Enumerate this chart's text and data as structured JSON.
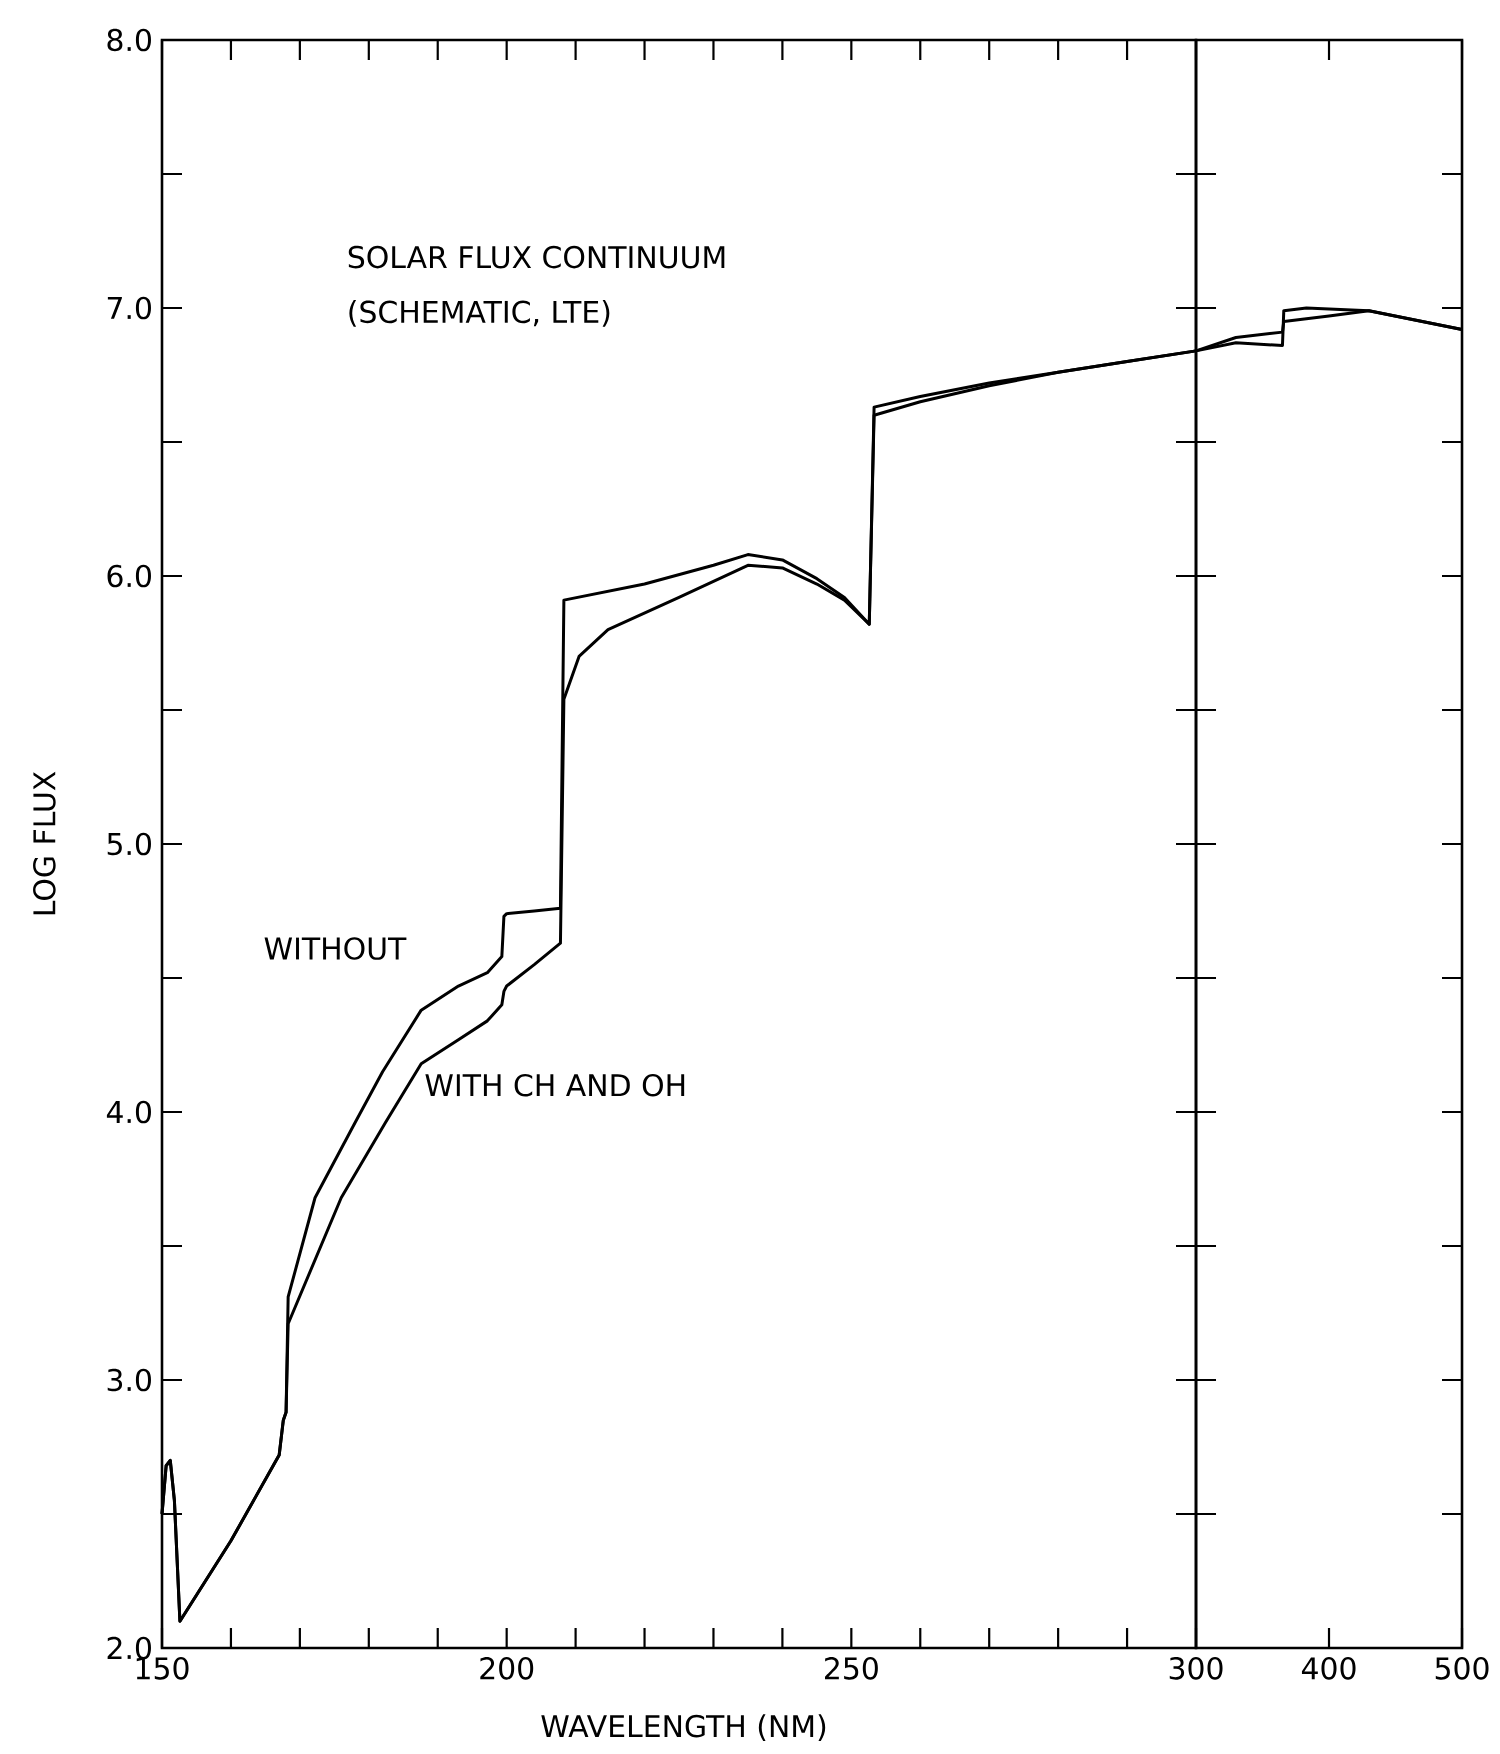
{
  "chart_data": [
    {
      "type": "line",
      "title": "SOLAR FLUX CONTINUUM",
      "subtitle": "(SCHEMATIC, LTE)",
      "xlabel": "WAVELENGTH (NM)",
      "ylabel": "LOG FLUX",
      "xlim": [
        150,
        300
      ],
      "ylim": [
        2,
        8
      ],
      "xticks": [
        150,
        {
          "value": 160,
          "label": null
        },
        {
          "value": 170,
          "label": null
        },
        {
          "value": 180,
          "label": null
        },
        {
          "value": 190,
          "label": null
        },
        200,
        {
          "value": 210,
          "label": null
        },
        {
          "value": 220,
          "label": null
        },
        {
          "value": 230,
          "label": null
        },
        {
          "value": 240,
          "label": null
        },
        250,
        {
          "value": 260,
          "label": null
        },
        {
          "value": 270,
          "label": null
        },
        {
          "value": 280,
          "label": null
        },
        {
          "value": 290,
          "label": null
        }
      ],
      "yticks": [
        {
          "value": 2,
          "label": "2.0"
        },
        {
          "value": 2.5,
          "label": null
        },
        {
          "value": 3,
          "label": "3.0"
        },
        {
          "value": 3.5,
          "label": null
        },
        {
          "value": 4,
          "label": "4.0"
        },
        {
          "value": 4.5,
          "label": null
        },
        {
          "value": 5,
          "label": "5.0"
        },
        {
          "value": 5.5,
          "label": null
        },
        {
          "value": 6,
          "label": "6.0"
        },
        {
          "value": 6.5,
          "label": null
        },
        {
          "value": 7,
          "label": "7.0"
        },
        {
          "value": 7.5,
          "label": null
        },
        {
          "value": 8,
          "label": "8.0"
        }
      ],
      "grid": false,
      "marker": "none",
      "line_style": "solid",
      "series": [
        {
          "name": "WITHOUT",
          "color": "#000000",
          "x": [
            150,
            150.6,
            151.2,
            151.8,
            152.6,
            160,
            167,
            167.6,
            168,
            168.3,
            172.2,
            178,
            182,
            187.6,
            193,
            197.2,
            199.3,
            199.6,
            200,
            204,
            207.8,
            208.3,
            220,
            230,
            235,
            240,
            245,
            249,
            252.6,
            253.3,
            260,
            270,
            280,
            290,
            300
          ],
          "values": [
            2.5,
            2.68,
            2.7,
            2.55,
            2.1,
            2.4,
            2.72,
            2.85,
            2.88,
            3.31,
            3.68,
            3.96,
            4.15,
            4.38,
            4.47,
            4.52,
            4.58,
            4.73,
            4.74,
            4.75,
            4.76,
            5.91,
            5.97,
            6.04,
            6.08,
            6.06,
            5.99,
            5.92,
            5.82,
            6.63,
            6.67,
            6.72,
            6.76,
            6.8,
            6.84
          ]
        },
        {
          "name": "WITH CH AND OH",
          "color": "#000000",
          "x": [
            150,
            150.6,
            151.2,
            151.8,
            152.6,
            160,
            167,
            167.6,
            168,
            168.3,
            176,
            182.4,
            187.6,
            193,
            197.2,
            199.3,
            199.6,
            200,
            204,
            207.8,
            208.3,
            210.5,
            214.7,
            225,
            235,
            240,
            245,
            249,
            252.6,
            253.3,
            260,
            270,
            280,
            290,
            300
          ],
          "values": [
            2.5,
            2.68,
            2.7,
            2.55,
            2.1,
            2.4,
            2.72,
            2.85,
            2.88,
            3.21,
            3.68,
            3.96,
            4.18,
            4.27,
            4.34,
            4.4,
            4.45,
            4.47,
            4.55,
            4.63,
            5.54,
            5.7,
            5.8,
            5.92,
            6.04,
            6.03,
            5.97,
            5.91,
            5.82,
            6.6,
            6.65,
            6.71,
            6.76,
            6.8,
            6.84
          ]
        }
      ]
    },
    {
      "type": "line",
      "xlim": [
        300,
        500
      ],
      "ylim": [
        2,
        8
      ],
      "xticks": [
        300,
        400,
        500
      ],
      "yticks": [
        {
          "value": 2,
          "label": null
        },
        {
          "value": 2.5,
          "label": null
        },
        {
          "value": 3,
          "label": null
        },
        {
          "value": 3.5,
          "label": null
        },
        {
          "value": 4,
          "label": null
        },
        {
          "value": 4.5,
          "label": null
        },
        {
          "value": 5,
          "label": null
        },
        {
          "value": 5.5,
          "label": null
        },
        {
          "value": 6,
          "label": null
        },
        {
          "value": 6.5,
          "label": null
        },
        {
          "value": 7,
          "label": null
        },
        {
          "value": 7.5,
          "label": null
        },
        {
          "value": 8,
          "label": null
        }
      ],
      "tick_labels": "x",
      "grid": false,
      "marker": "none",
      "line_style": "solid",
      "series": [
        {
          "color": "#000000",
          "x": [
            300,
            330,
            365,
            366,
            383,
            430,
            500
          ],
          "values": [
            6.84,
            6.87,
            6.86,
            6.99,
            7.0,
            6.99,
            6.92
          ]
        },
        {
          "color": "#000000",
          "x": [
            300,
            330,
            365,
            366,
            400,
            430,
            500
          ],
          "values": [
            6.84,
            6.89,
            6.91,
            6.95,
            6.97,
            6.99,
            6.92
          ]
        }
      ]
    }
  ]
}
